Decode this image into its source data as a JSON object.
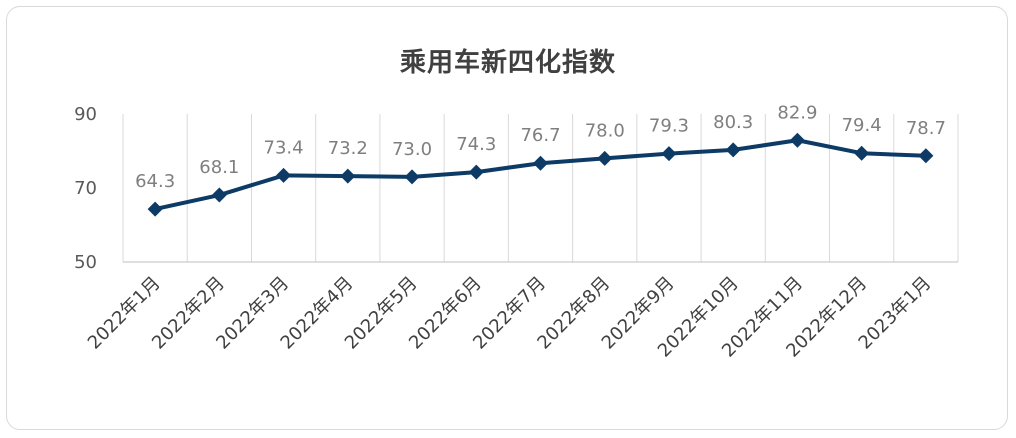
{
  "chart_data": {
    "type": "line",
    "title": "乘用车新四化指数",
    "categories": [
      "2022年1月",
      "2022年2月",
      "2022年3月",
      "2022年4月",
      "2022年5月",
      "2022年6月",
      "2022年7月",
      "2022年8月",
      "2022年9月",
      "2022年10月",
      "2022年11月",
      "2022年12月",
      "2023年1月"
    ],
    "values": [
      64.3,
      68.1,
      73.4,
      73.2,
      73.0,
      74.3,
      76.7,
      78.0,
      79.3,
      80.3,
      82.9,
      79.4,
      78.7
    ],
    "value_labels": [
      "64.3",
      "68.1",
      "73.4",
      "73.2",
      "73.0",
      "74.3",
      "76.7",
      "78.0",
      "79.3",
      "80.3",
      "82.9",
      "79.4",
      "78.7"
    ],
    "yticks": [
      "50",
      "70",
      "90"
    ],
    "ylim": [
      50,
      90
    ],
    "xlabel": "",
    "ylabel": "",
    "grid": "vertical",
    "line_color": "#0d3b66",
    "marker": "diamond"
  }
}
